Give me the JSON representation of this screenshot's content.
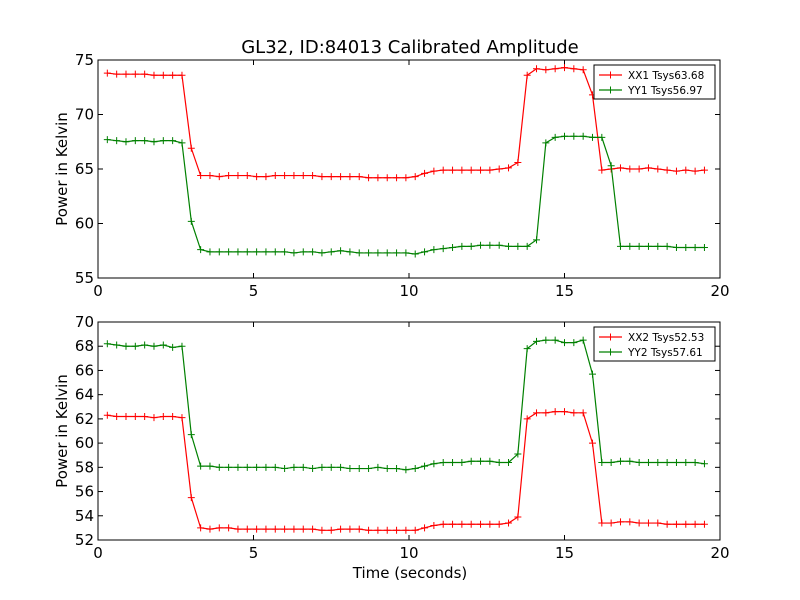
{
  "chart_data": [
    {
      "type": "line",
      "title": "GL32, ID:84013 Calibrated Amplitude",
      "xlabel": "",
      "ylabel": "Power in Kelvin",
      "xlim": [
        0,
        20
      ],
      "ylim": [
        55,
        75
      ],
      "xticks": [
        0,
        5,
        10,
        15,
        20
      ],
      "yticks": [
        55,
        60,
        65,
        70,
        75
      ],
      "legend_position": "top-right",
      "x": [
        0.3,
        0.6,
        0.9,
        1.2,
        1.5,
        1.8,
        2.1,
        2.4,
        2.7,
        3.0,
        3.3,
        3.6,
        3.9,
        4.2,
        4.5,
        4.8,
        5.1,
        5.4,
        5.7,
        6.0,
        6.3,
        6.6,
        6.9,
        7.2,
        7.5,
        7.8,
        8.1,
        8.4,
        8.7,
        9.0,
        9.3,
        9.6,
        9.9,
        10.2,
        10.5,
        10.8,
        11.1,
        11.4,
        11.7,
        12.0,
        12.3,
        12.6,
        12.9,
        13.2,
        13.5,
        13.8,
        14.1,
        14.4,
        14.7,
        15.0,
        15.3,
        15.6,
        15.9,
        16.2,
        16.5,
        16.8,
        17.1,
        17.4,
        17.7,
        18.0,
        18.3,
        18.6,
        18.9,
        19.2,
        19.5
      ],
      "series": [
        {
          "name": "XX1 Tsys63.68",
          "color": "#ff0000",
          "values": [
            73.8,
            73.7,
            73.7,
            73.7,
            73.7,
            73.6,
            73.6,
            73.6,
            73.6,
            66.9,
            64.4,
            64.4,
            64.3,
            64.4,
            64.4,
            64.4,
            64.3,
            64.3,
            64.4,
            64.4,
            64.4,
            64.4,
            64.4,
            64.3,
            64.3,
            64.3,
            64.3,
            64.3,
            64.2,
            64.2,
            64.2,
            64.2,
            64.2,
            64.3,
            64.6,
            64.8,
            64.9,
            64.9,
            64.9,
            64.9,
            64.9,
            64.9,
            65.0,
            65.1,
            65.6,
            73.6,
            74.2,
            74.1,
            74.2,
            74.3,
            74.2,
            74.1,
            71.8,
            64.9,
            65.0,
            65.1,
            65.0,
            65.0,
            65.1,
            65.0,
            64.9,
            64.8,
            64.9,
            64.8,
            64.9
          ]
        },
        {
          "name": "YY1 Tsys56.97",
          "color": "#008000",
          "values": [
            67.7,
            67.6,
            67.5,
            67.6,
            67.6,
            67.5,
            67.6,
            67.6,
            67.4,
            60.2,
            57.6,
            57.4,
            57.4,
            57.4,
            57.4,
            57.4,
            57.4,
            57.4,
            57.4,
            57.4,
            57.3,
            57.4,
            57.4,
            57.3,
            57.4,
            57.5,
            57.4,
            57.3,
            57.3,
            57.3,
            57.3,
            57.3,
            57.3,
            57.2,
            57.4,
            57.6,
            57.7,
            57.8,
            57.9,
            57.9,
            58.0,
            58.0,
            58.0,
            57.9,
            57.9,
            57.9,
            58.5,
            67.4,
            67.9,
            68.0,
            68.0,
            68.0,
            67.9,
            67.9,
            65.3,
            57.9,
            57.9,
            57.9,
            57.9,
            57.9,
            57.9,
            57.8,
            57.8,
            57.8,
            57.8
          ]
        }
      ]
    },
    {
      "type": "line",
      "title": "",
      "xlabel": "Time (seconds)",
      "ylabel": "Power in Kelvin",
      "xlim": [
        0,
        20
      ],
      "ylim": [
        52,
        70
      ],
      "xticks": [
        0,
        5,
        10,
        15,
        20
      ],
      "yticks": [
        52,
        54,
        56,
        58,
        60,
        62,
        64,
        66,
        68,
        70
      ],
      "legend_position": "top-right",
      "x": [
        0.3,
        0.6,
        0.9,
        1.2,
        1.5,
        1.8,
        2.1,
        2.4,
        2.7,
        3.0,
        3.3,
        3.6,
        3.9,
        4.2,
        4.5,
        4.8,
        5.1,
        5.4,
        5.7,
        6.0,
        6.3,
        6.6,
        6.9,
        7.2,
        7.5,
        7.8,
        8.1,
        8.4,
        8.7,
        9.0,
        9.3,
        9.6,
        9.9,
        10.2,
        10.5,
        10.8,
        11.1,
        11.4,
        11.7,
        12.0,
        12.3,
        12.6,
        12.9,
        13.2,
        13.5,
        13.8,
        14.1,
        14.4,
        14.7,
        15.0,
        15.3,
        15.6,
        15.9,
        16.2,
        16.5,
        16.8,
        17.1,
        17.4,
        17.7,
        18.0,
        18.3,
        18.6,
        18.9,
        19.2,
        19.5
      ],
      "series": [
        {
          "name": "XX2 Tsys52.53",
          "color": "#ff0000",
          "values": [
            62.3,
            62.2,
            62.2,
            62.2,
            62.2,
            62.1,
            62.2,
            62.2,
            62.1,
            55.5,
            53.0,
            52.9,
            53.0,
            53.0,
            52.9,
            52.9,
            52.9,
            52.9,
            52.9,
            52.9,
            52.9,
            52.9,
            52.9,
            52.8,
            52.8,
            52.9,
            52.9,
            52.9,
            52.8,
            52.8,
            52.8,
            52.8,
            52.8,
            52.8,
            53.0,
            53.2,
            53.3,
            53.3,
            53.3,
            53.3,
            53.3,
            53.3,
            53.3,
            53.4,
            53.9,
            62.0,
            62.5,
            62.5,
            62.6,
            62.6,
            62.5,
            62.5,
            60.0,
            53.4,
            53.4,
            53.5,
            53.5,
            53.4,
            53.4,
            53.4,
            53.3,
            53.3,
            53.3,
            53.3,
            53.3
          ]
        },
        {
          "name": "YY2 Tsys57.61",
          "color": "#008000",
          "values": [
            68.2,
            68.1,
            68.0,
            68.0,
            68.1,
            68.0,
            68.1,
            67.9,
            68.0,
            60.7,
            58.1,
            58.1,
            58.0,
            58.0,
            58.0,
            58.0,
            58.0,
            58.0,
            58.0,
            57.9,
            58.0,
            58.0,
            57.9,
            58.0,
            58.0,
            58.0,
            57.9,
            57.9,
            57.9,
            58.0,
            57.9,
            57.9,
            57.8,
            57.9,
            58.1,
            58.3,
            58.4,
            58.4,
            58.4,
            58.5,
            58.5,
            58.5,
            58.4,
            58.4,
            59.1,
            67.8,
            68.4,
            68.5,
            68.5,
            68.3,
            68.3,
            68.5,
            65.7,
            58.4,
            58.4,
            58.5,
            58.5,
            58.4,
            58.4,
            58.4,
            58.4,
            58.4,
            58.4,
            58.4,
            58.3
          ]
        }
      ]
    }
  ]
}
